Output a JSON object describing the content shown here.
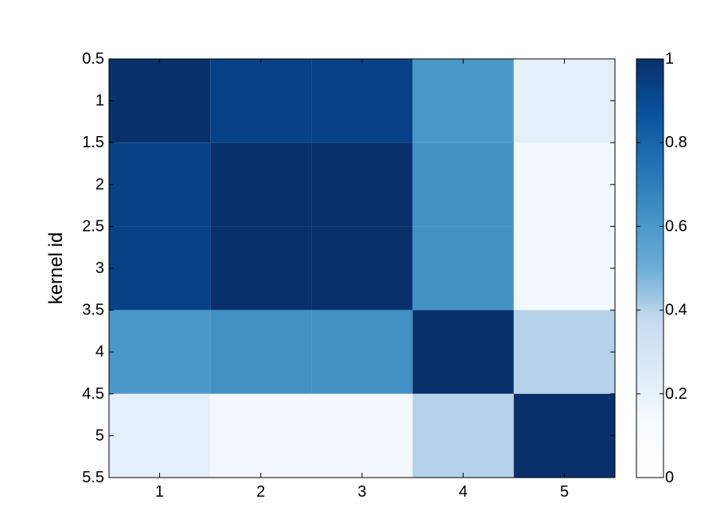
{
  "chart_data": {
    "type": "heatmap",
    "title": "",
    "xlabel": "",
    "ylabel": "kernel id",
    "x_ticks": [
      "1",
      "2",
      "3",
      "4",
      "5"
    ],
    "y_ticks": [
      "0.5",
      "1",
      "1.5",
      "2",
      "2.5",
      "3",
      "3.5",
      "4",
      "4.5",
      "5",
      "5.5"
    ],
    "xlim": [
      0.5,
      5.5
    ],
    "ylim": [
      0.5,
      5.5
    ],
    "y_reversed": true,
    "colorbar": {
      "range": [
        0,
        1
      ],
      "ticks": [
        "0",
        "0.2",
        "0.4",
        "0.6",
        "0.8",
        "1"
      ],
      "colormap": "Blues",
      "color_low": "#ffffff",
      "color_high": "#08306b"
    },
    "matrix": [
      [
        1.0,
        0.93,
        0.93,
        0.6,
        0.22
      ],
      [
        0.93,
        1.0,
        1.0,
        0.63,
        0.15
      ],
      [
        0.93,
        1.0,
        1.0,
        0.63,
        0.15
      ],
      [
        0.6,
        0.63,
        0.63,
        1.0,
        0.4
      ],
      [
        0.22,
        0.15,
        0.15,
        0.4,
        1.0
      ]
    ]
  }
}
